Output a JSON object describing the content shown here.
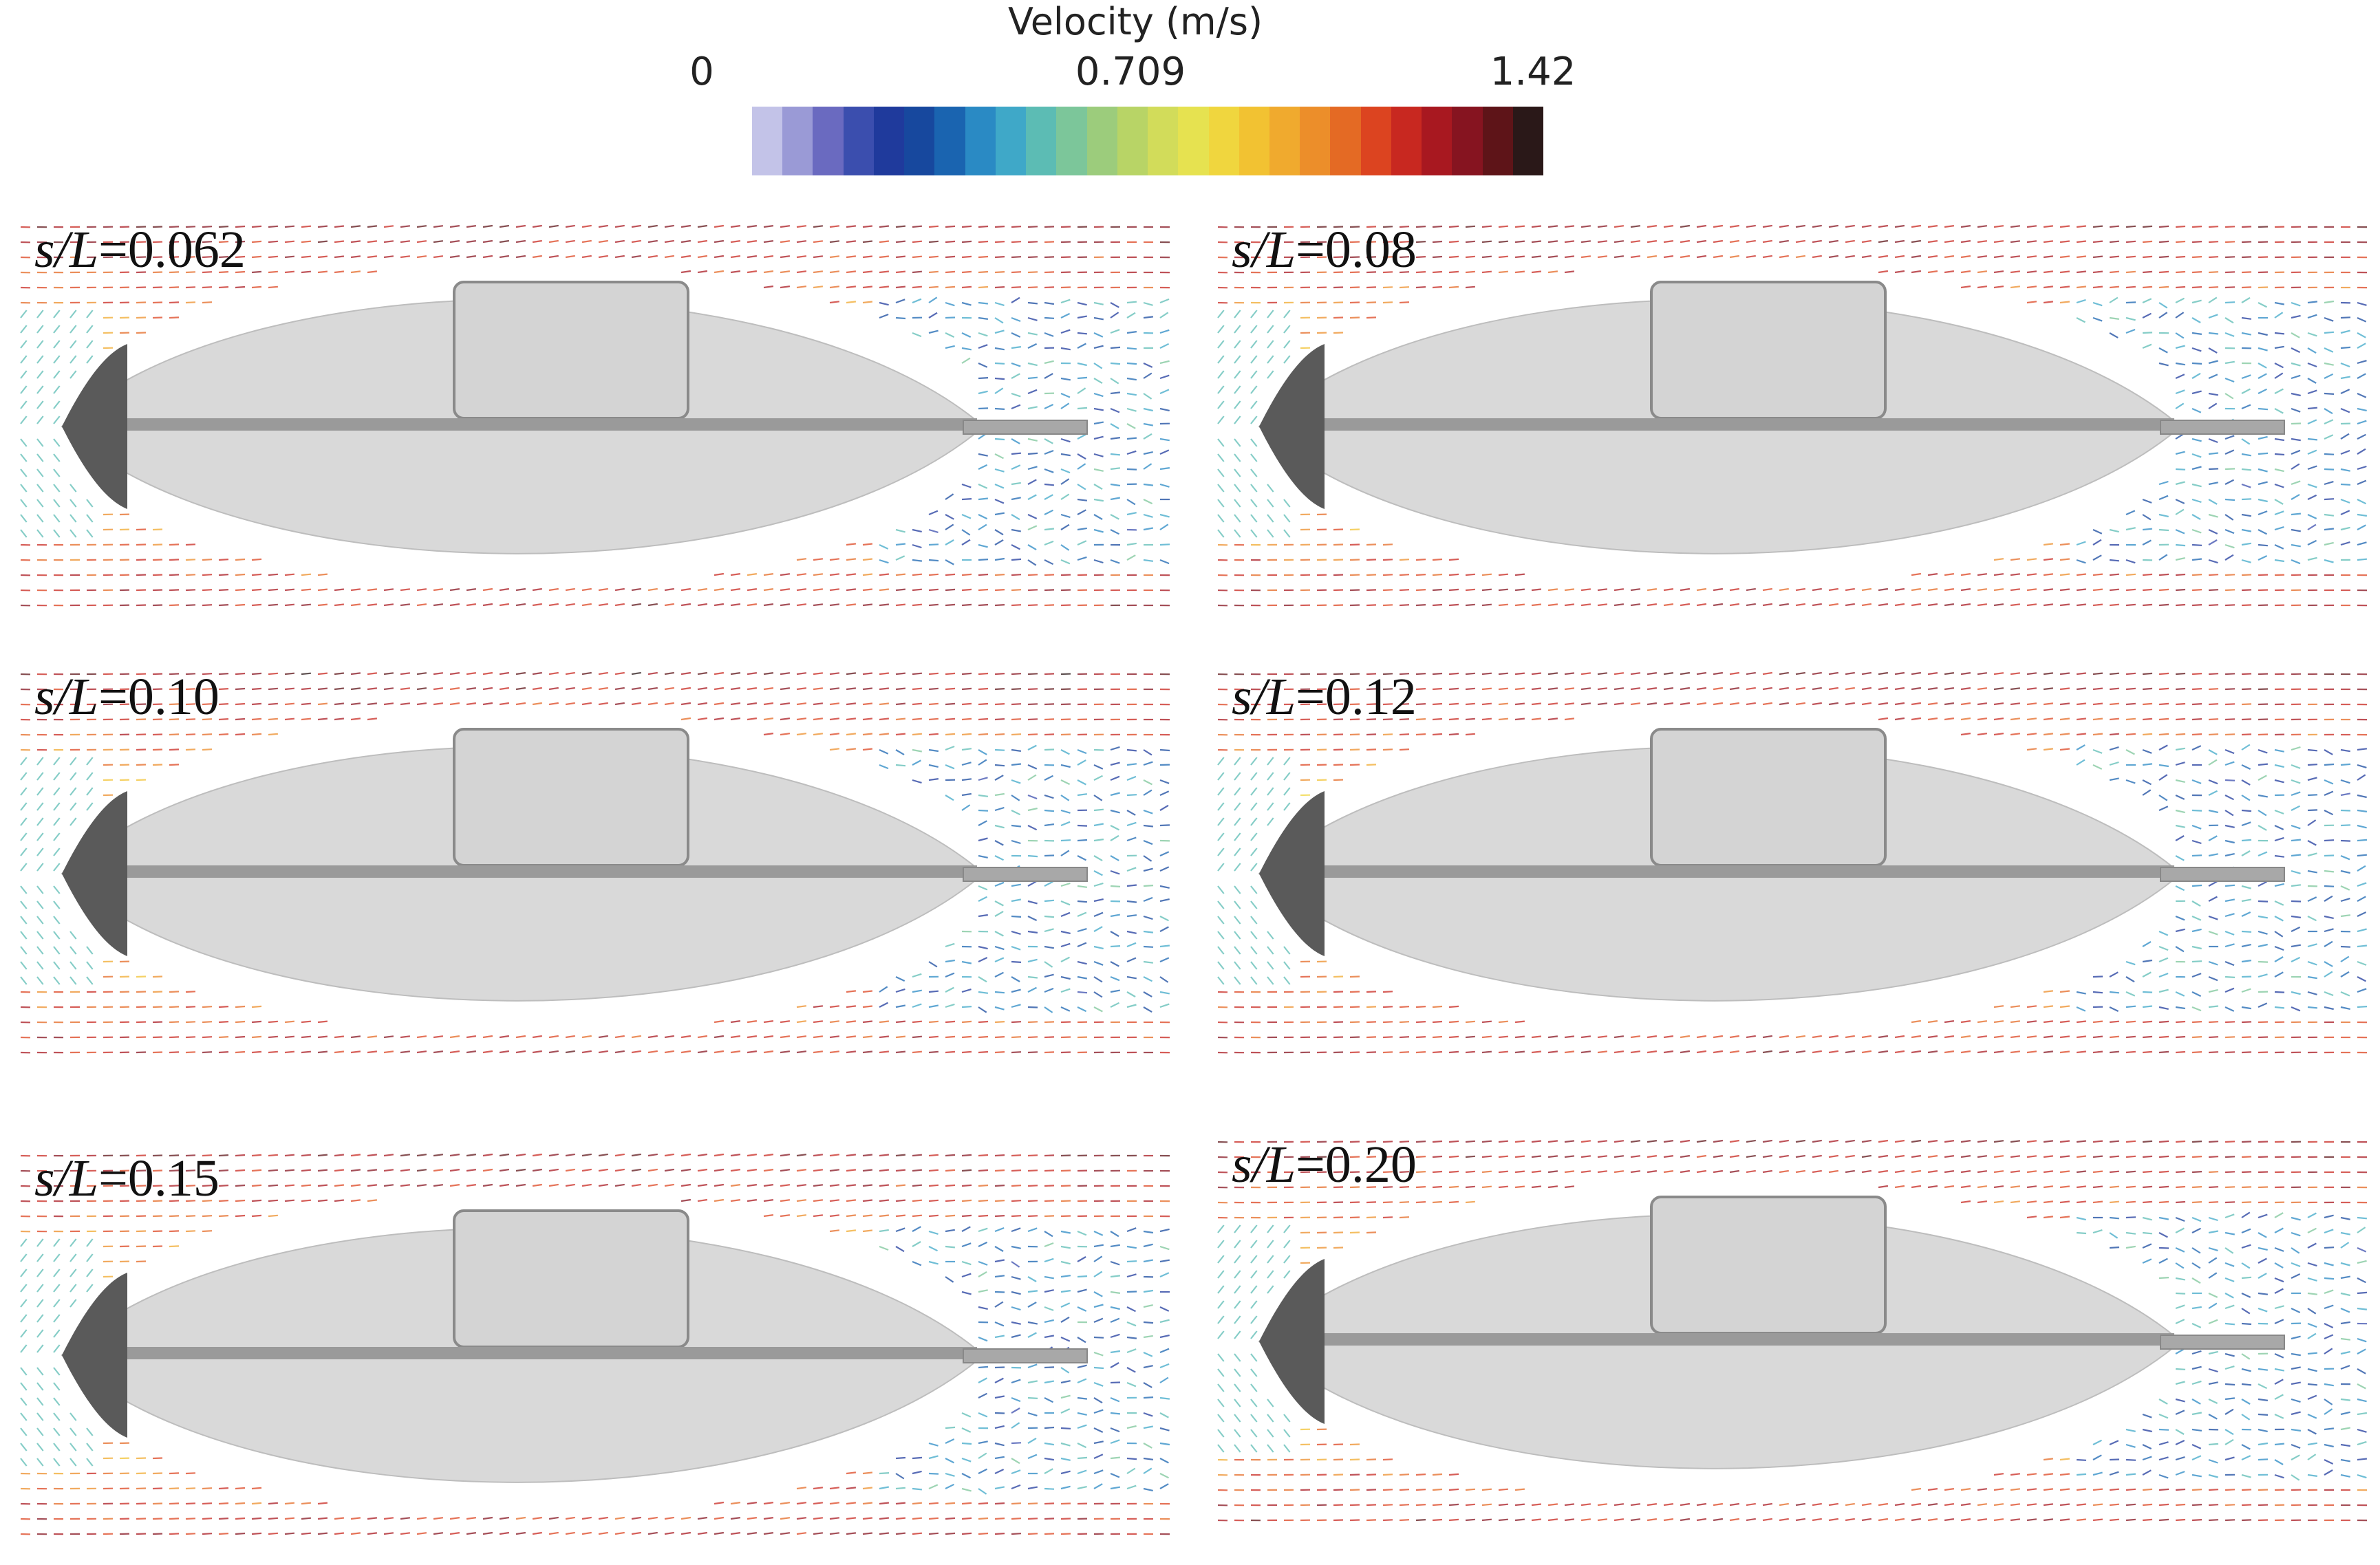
{
  "colorbar": {
    "title": "Velocity (m/s)",
    "ticks": [
      "0",
      "0.709",
      "1.42"
    ],
    "colors": [
      "#c3c3e8",
      "#9a9ad6",
      "#6a6ac0",
      "#3b4eae",
      "#1f3a9c",
      "#17489e",
      "#1a64b0",
      "#2a8ac4",
      "#3fa8c8",
      "#5cbcb4",
      "#7cc69a",
      "#9ccc7c",
      "#b8d466",
      "#d2dc5a",
      "#e6e250",
      "#f0d63e",
      "#f2c232",
      "#f0aa2e",
      "#ec8e2a",
      "#e46a24",
      "#dc4420",
      "#c82820",
      "#a81820",
      "#861420",
      "#5e1418",
      "#2a1818"
    ]
  },
  "panels": [
    {
      "label_s": "s/L",
      "label_value": "=0.062"
    },
    {
      "label_s": "s/L",
      "label_value": "=0.08"
    },
    {
      "label_s": "s/L",
      "label_value": "=0.10"
    },
    {
      "label_s": "s/L",
      "label_value": "=0.12"
    },
    {
      "label_s": "s/L",
      "label_value": "=0.15"
    },
    {
      "label_s": "s/L",
      "label_value": "=0.20"
    }
  ]
}
